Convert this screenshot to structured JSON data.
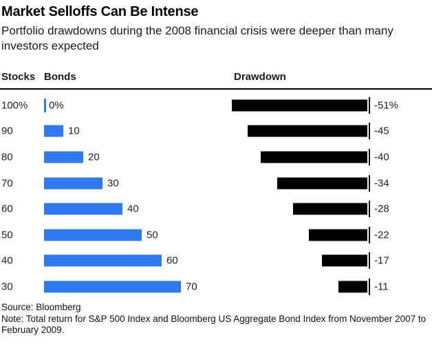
{
  "title": "Market Selloffs Can Be Intense",
  "subtitle": "Portfolio drawdowns during the 2008 financial crisis were deeper than many investors expected",
  "columns": {
    "stocks": "Stocks",
    "bonds": "Bonds",
    "drawdown": "Drawdown"
  },
  "footer": {
    "source": "Source: Bloomberg",
    "note": "Note: Total return for S&P 500 Index and Bloomberg US Aggregate Bond Index from November 2007 to February 2009."
  },
  "colors": {
    "bonds_bar": "#2F7AF0",
    "drawdown_bar": "#000000",
    "header_rule": "#000000",
    "text": "#222222"
  },
  "chart_data": {
    "type": "bar",
    "orientation": "horizontal",
    "title": "Market Selloffs Can Be Intense",
    "subtitle": "Portfolio drawdowns during the 2008 financial crisis were deeper than many investors expected",
    "columns": [
      "Stocks",
      "Bonds",
      "Drawdown"
    ],
    "legend": "none",
    "grid": false,
    "bonds_axis_range": [
      0,
      70
    ],
    "drawdown_axis_range": [
      0,
      -51
    ],
    "rows": [
      {
        "stocks": "100%",
        "bonds": 0,
        "bonds_label": "0%",
        "drawdown": -51,
        "drawdown_label": "-51%"
      },
      {
        "stocks": "90",
        "bonds": 10,
        "bonds_label": "10",
        "drawdown": -45,
        "drawdown_label": "-45"
      },
      {
        "stocks": "80",
        "bonds": 20,
        "bonds_label": "20",
        "drawdown": -40,
        "drawdown_label": "-40"
      },
      {
        "stocks": "70",
        "bonds": 30,
        "bonds_label": "30",
        "drawdown": -34,
        "drawdown_label": "-34"
      },
      {
        "stocks": "60",
        "bonds": 40,
        "bonds_label": "40",
        "drawdown": -28,
        "drawdown_label": "-28"
      },
      {
        "stocks": "50",
        "bonds": 50,
        "bonds_label": "50",
        "drawdown": -22,
        "drawdown_label": "-22"
      },
      {
        "stocks": "40",
        "bonds": 60,
        "bonds_label": "60",
        "drawdown": -17,
        "drawdown_label": "-17"
      },
      {
        "stocks": "30",
        "bonds": 70,
        "bonds_label": "70",
        "drawdown": -11,
        "drawdown_label": "-11"
      }
    ]
  }
}
